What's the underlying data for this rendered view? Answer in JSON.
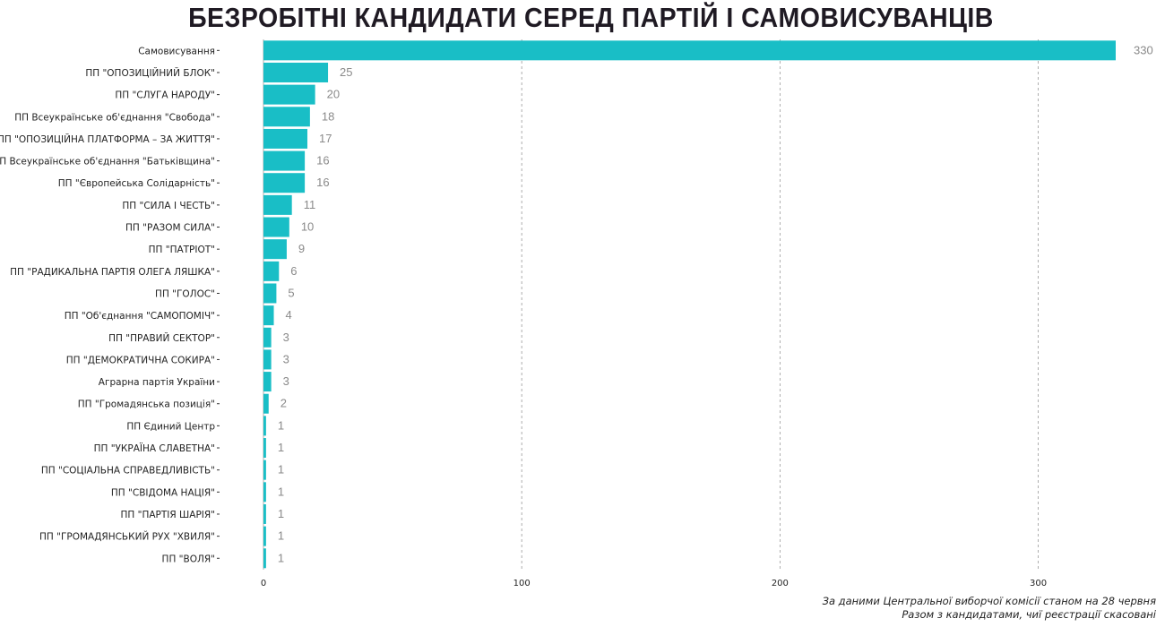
{
  "chart_data": {
    "type": "bar",
    "orientation": "horizontal",
    "title": "БЕЗРОБІТНІ КАНДИДАТИ СЕРЕД ПАРТІЙ І САМОВИСУВАНЦІВ",
    "categories": [
      "Самовисування",
      "ПП \"ОПОЗИЦІЙНИЙ БЛОК\"",
      "ПП \"СЛУГА НАРОДУ\"",
      "ПП Всеукраїнське об'єднання \"Свобода\"",
      "ПП \"ОПОЗИЦІЙНА ПЛАТФОРМА – ЗА ЖИТТЯ\"",
      "ПП Всеукраїнське об'єднання \"Батьківщина\"",
      "ПП \"Європейська Солідарність\"",
      "ПП \"СИЛА І ЧЕСТЬ\"",
      "ПП \"РАЗОМ СИЛА\"",
      "ПП \"ПАТРІОТ\"",
      "ПП \"РАДИКАЛЬНА ПАРТІЯ ОЛЕГА ЛЯШКА\"",
      "ПП \"ГОЛОС\"",
      "ПП \"Об'єднання \"САМОПОМІЧ\"",
      "ПП \"ПРАВИЙ СЕКТОР\"",
      "ПП \"ДЕМОКРАТИЧНА СОКИРА\"",
      "Аграрна партія України",
      "ПП \"Громадянська позиція\"",
      "ПП Єдиний Центр",
      "ПП \"УКРАЇНА СЛАВЕТНА\"",
      "ПП \"СОЦІАЛЬНА СПРАВЕДЛИВІСТЬ\"",
      "ПП \"СВІДОМА НАЦІЯ\"",
      "ПП \"ПАРТІЯ ШАРІЯ\"",
      "ПП \"ГРОМАДЯНСЬКИЙ РУХ \"ХВИЛЯ\"",
      "ПП \"ВОЛЯ\""
    ],
    "values": [
      330,
      25,
      20,
      18,
      17,
      16,
      16,
      11,
      10,
      9,
      6,
      5,
      4,
      3,
      3,
      3,
      2,
      1,
      1,
      1,
      1,
      1,
      1,
      1
    ],
    "xlim": [
      0,
      330
    ],
    "xticks": [
      0,
      100,
      200,
      300
    ],
    "grid": "vertical dashed",
    "xlabel": "",
    "ylabel": ""
  },
  "colors": {
    "bar": "#19bec6",
    "value_label": "#8a8a8a",
    "grid": "#9a9a9a",
    "title": "#1f1a23"
  },
  "captions": {
    "line1": "За даними Центральної виборчої комісії станом на 28 червня",
    "line2": "Разом з кандидатами, чиї реєстрації скасовані"
  }
}
